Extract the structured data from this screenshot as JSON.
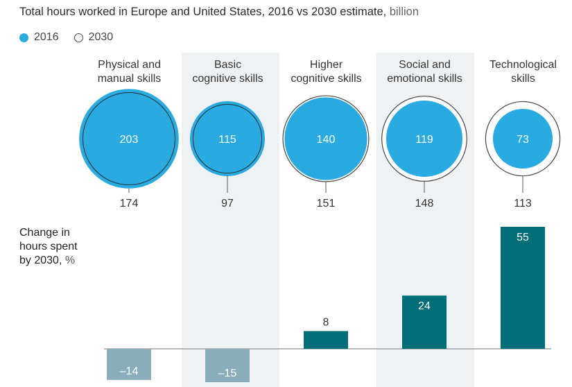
{
  "header": {
    "title": "Total hours worked in Europe and United States, 2016 vs 2030 estimate,",
    "unit": " billion"
  },
  "legend": {
    "series_2016": "2016",
    "series_2030": "2030"
  },
  "side_label": {
    "line1": "Change in",
    "line2": "hours spent",
    "line3": "by 2030,",
    "unit": " %"
  },
  "colors": {
    "filled": "#29abe2",
    "outline": "#444444",
    "bar_positive": "#006e78",
    "bar_negative": "#8aadbc",
    "band": "#eef2f5"
  },
  "chart_data": [
    {
      "type": "bubble",
      "title": "Total hours worked in Europe and United States, 2016 vs 2030 estimate, billion",
      "categories": [
        [
          "Physical and",
          "manual skills"
        ],
        [
          "Basic",
          "cognitive skills"
        ],
        [
          "Higher",
          "cognitive skills"
        ],
        [
          "Social and",
          "emotional skills"
        ],
        [
          "Technological",
          "skills"
        ]
      ],
      "series": [
        {
          "name": "2016",
          "values": [
            203,
            115,
            140,
            119,
            73
          ]
        },
        {
          "name": "2030",
          "values": [
            174,
            97,
            151,
            148,
            113
          ]
        }
      ]
    },
    {
      "type": "bar",
      "ylabel": "Change in hours spent by 2030, %",
      "categories": [
        "Physical and manual skills",
        "Basic cognitive skills",
        "Higher cognitive skills",
        "Social and emotional skills",
        "Technological skills"
      ],
      "values": [
        -14,
        -15,
        8,
        24,
        55
      ],
      "value_labels": [
        "–14",
        "–15",
        "8",
        "24",
        "55"
      ]
    }
  ]
}
